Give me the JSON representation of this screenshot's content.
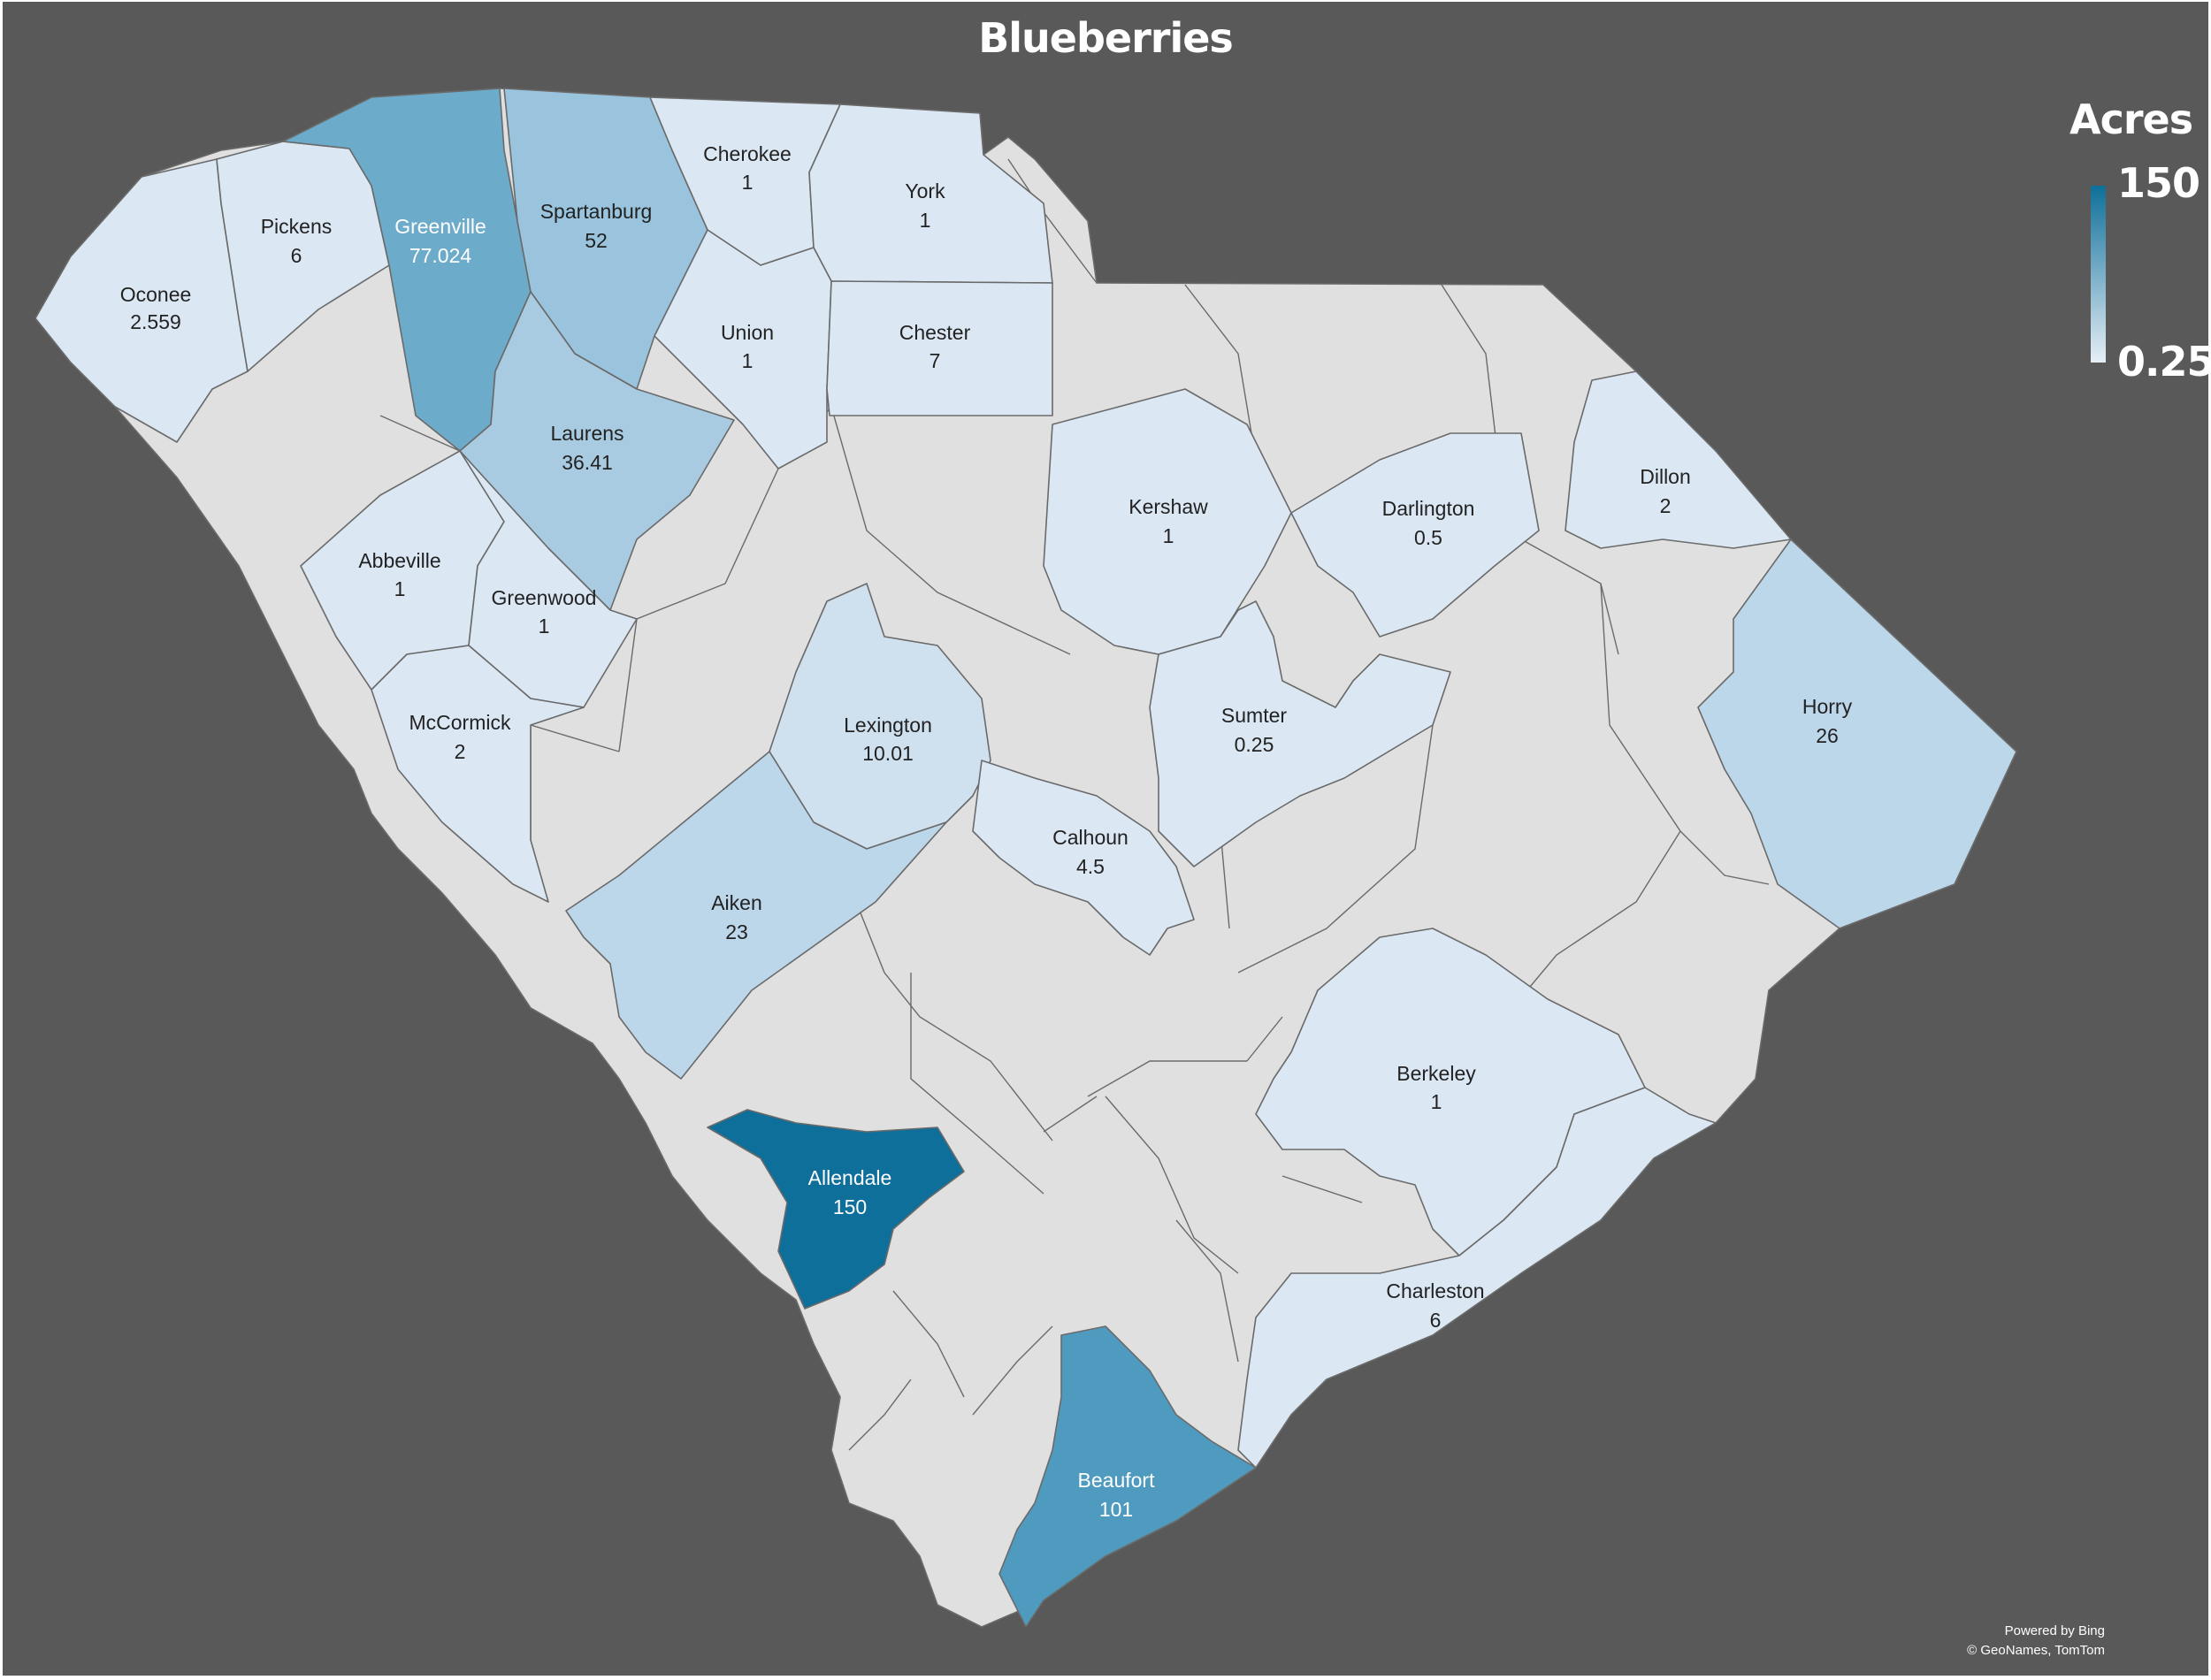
{
  "title": "Blueberries",
  "legend": {
    "title": "Acres",
    "max_label": "150",
    "min_label": "0.25",
    "color_max": "#0e6f9a",
    "color_min": "#e6eef6"
  },
  "credits": {
    "line1": "Powered by Bing",
    "line2": "© GeoNames, TomTom"
  },
  "no_data_color": "#e0e0e0",
  "background_color": "#595959",
  "counties": [
    {
      "name": "Oconee",
      "value": "2.559"
    },
    {
      "name": "Pickens",
      "value": "6"
    },
    {
      "name": "Greenville",
      "value": "77.024"
    },
    {
      "name": "Spartanburg",
      "value": "52"
    },
    {
      "name": "Cherokee",
      "value": "1"
    },
    {
      "name": "York",
      "value": "1"
    },
    {
      "name": "Union",
      "value": "1"
    },
    {
      "name": "Chester",
      "value": "7"
    },
    {
      "name": "Laurens",
      "value": "36.41"
    },
    {
      "name": "Abbeville",
      "value": "1"
    },
    {
      "name": "Greenwood",
      "value": "1"
    },
    {
      "name": "McCormick",
      "value": "2"
    },
    {
      "name": "Kershaw",
      "value": "1"
    },
    {
      "name": "Darlington",
      "value": "0.5"
    },
    {
      "name": "Dillon",
      "value": "2"
    },
    {
      "name": "Lexington",
      "value": "10.01"
    },
    {
      "name": "Sumter",
      "value": "0.25"
    },
    {
      "name": "Calhoun",
      "value": "4.5"
    },
    {
      "name": "Horry",
      "value": "26"
    },
    {
      "name": "Aiken",
      "value": "23"
    },
    {
      "name": "Berkeley",
      "value": "1"
    },
    {
      "name": "Allendale",
      "value": "150"
    },
    {
      "name": "Charleston",
      "value": "6"
    },
    {
      "name": "Beaufort",
      "value": "101"
    }
  ]
}
